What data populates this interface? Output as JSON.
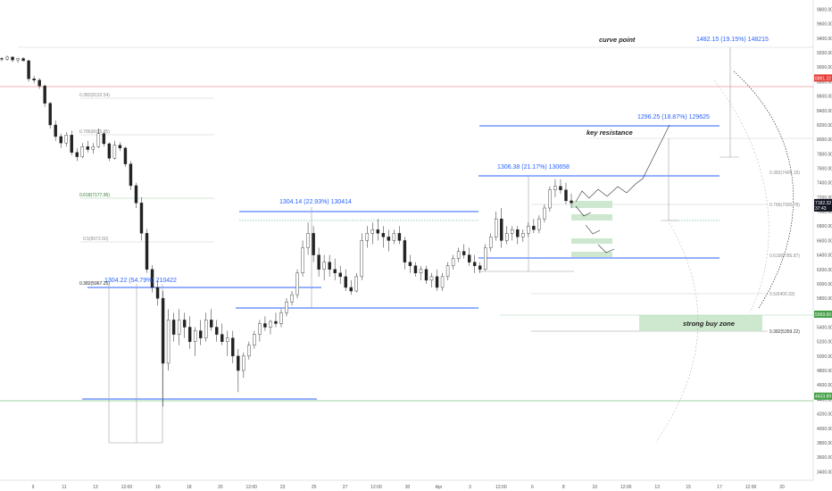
{
  "chart_data": {
    "type": "candlestick",
    "y_axis": {
      "ticks": [
        "9800.00",
        "9600.00",
        "9400.00",
        "9200.00",
        "9000.00",
        "8800.00",
        "8600.00",
        "8400.00",
        "8200.00",
        "8000.00",
        "7800.00",
        "7600.00",
        "7400.00",
        "7200.00",
        "7000.00",
        "6800.00",
        "6600.00",
        "6400.00",
        "6200.00",
        "6000.00",
        "5800.00",
        "5600.00",
        "5400.00",
        "5200.00",
        "5000.00",
        "4800.00",
        "4600.00",
        "4400.00",
        "4200.00",
        "4000.00",
        "3800.00",
        "3600.00",
        "3400.00"
      ],
      "tick_values": [
        9800,
        9600,
        9400,
        9200,
        9000,
        8800,
        8600,
        8400,
        8200,
        8000,
        7800,
        7600,
        7400,
        7200,
        7000,
        6800,
        6600,
        6400,
        6200,
        6000,
        5800,
        5600,
        5400,
        5200,
        5000,
        4800,
        4600,
        4400,
        4200,
        4000,
        3800,
        3600,
        3400
      ],
      "ylim": [
        3280,
        9930
      ]
    },
    "x_axis": {
      "ticks": [
        "9",
        "11",
        "13",
        "12:00",
        "16",
        "18",
        "20",
        "12:00",
        "23",
        "25",
        "27",
        "12:00",
        "30",
        "Apr",
        "3",
        "12:00",
        "6",
        "8",
        "10",
        "12:00",
        "13",
        "15",
        "17",
        "12:00",
        "20"
      ]
    },
    "price_badges": [
      {
        "label": "8881.22",
        "value": 8850,
        "color": "#e53935"
      },
      {
        "label": "7182.32",
        "value": 7125,
        "color": "#131722"
      },
      {
        "label": "37:43",
        "value": 7050,
        "color": "#131722"
      },
      {
        "label": "5569.60",
        "value": 5580,
        "color": "#43a047"
      },
      {
        "label": "4433.89",
        "value": 4445,
        "color": "#43a047"
      }
    ],
    "candles": [
      [
        9120,
        9140,
        9080,
        9110
      ],
      [
        9110,
        9160,
        9090,
        9140
      ],
      [
        9140,
        9150,
        9070,
        9100
      ],
      [
        9100,
        9130,
        9060,
        9120
      ],
      [
        9120,
        9140,
        9080,
        9090
      ],
      [
        9090,
        9100,
        8800,
        8840
      ],
      [
        8840,
        8880,
        8780,
        8820
      ],
      [
        8820,
        8850,
        8700,
        8740
      ],
      [
        8740,
        8760,
        8450,
        8500
      ],
      [
        8500,
        8520,
        8150,
        8200
      ],
      [
        8200,
        8260,
        7980,
        8040
      ],
      [
        8040,
        8080,
        7880,
        7950
      ],
      [
        7950,
        8100,
        7900,
        8060
      ],
      [
        8060,
        8120,
        7780,
        7820
      ],
      [
        7820,
        7880,
        7700,
        7760
      ],
      [
        7760,
        7950,
        7740,
        7900
      ],
      [
        7900,
        7980,
        7820,
        7860
      ],
      [
        7860,
        7950,
        7800,
        7900
      ],
      [
        7900,
        8150,
        7880,
        8080
      ],
      [
        8080,
        8100,
        7900,
        7940
      ],
      [
        7940,
        7960,
        7700,
        7740
      ],
      [
        7740,
        7980,
        7720,
        7920
      ],
      [
        7920,
        7960,
        7840,
        7880
      ],
      [
        7880,
        7900,
        7620,
        7660
      ],
      [
        7660,
        7700,
        7300,
        7360
      ],
      [
        7360,
        7400,
        7050,
        7120
      ],
      [
        7120,
        7200,
        6600,
        6700
      ],
      [
        6700,
        6760,
        6150,
        6200
      ],
      [
        6200,
        6260,
        5880,
        5950
      ],
      [
        5950,
        6050,
        5700,
        5800
      ],
      [
        5800,
        5900,
        4300,
        4900
      ],
      [
        4900,
        5650,
        4800,
        5500
      ],
      [
        5500,
        5600,
        5200,
        5300
      ],
      [
        5300,
        5650,
        5150,
        5500
      ],
      [
        5500,
        5600,
        5250,
        5400
      ],
      [
        5400,
        5550,
        5100,
        5200
      ],
      [
        5200,
        5400,
        5000,
        5350
      ],
      [
        5350,
        5500,
        5150,
        5250
      ],
      [
        5250,
        5600,
        5200,
        5500
      ],
      [
        5500,
        5650,
        5350,
        5400
      ],
      [
        5400,
        5500,
        5200,
        5300
      ],
      [
        5300,
        5450,
        5150,
        5200
      ],
      [
        5200,
        5350,
        5000,
        5250
      ],
      [
        5250,
        5350,
        4900,
        5000
      ],
      [
        5000,
        5100,
        4500,
        4800
      ],
      [
        4800,
        5050,
        4700,
        5000
      ],
      [
        5000,
        5200,
        4950,
        5150
      ],
      [
        5150,
        5350,
        5100,
        5300
      ],
      [
        5300,
        5500,
        5200,
        5450
      ],
      [
        5450,
        5550,
        5350,
        5400
      ],
      [
        5400,
        5500,
        5300,
        5480
      ],
      [
        5480,
        5600,
        5400,
        5450
      ],
      [
        5450,
        5650,
        5400,
        5600
      ],
      [
        5600,
        5800,
        5550,
        5750
      ],
      [
        5750,
        5900,
        5700,
        5850
      ],
      [
        5850,
        6200,
        5800,
        6150
      ],
      [
        6150,
        6600,
        6100,
        6500
      ],
      [
        6500,
        6850,
        6400,
        6700
      ],
      [
        6700,
        6800,
        6300,
        6400
      ],
      [
        6400,
        6500,
        6100,
        6200
      ],
      [
        6200,
        6400,
        6050,
        6300
      ],
      [
        6300,
        6400,
        6100,
        6200
      ],
      [
        6200,
        6350,
        6050,
        6150
      ],
      [
        6150,
        6250,
        6000,
        6100
      ],
      [
        6100,
        6200,
        5900,
        5950
      ],
      [
        5950,
        6050,
        5850,
        5900
      ],
      [
        5900,
        6150,
        5880,
        6100
      ],
      [
        6100,
        6700,
        6050,
        6600
      ],
      [
        6600,
        6800,
        6500,
        6700
      ],
      [
        6700,
        6850,
        6550,
        6750
      ],
      [
        6750,
        6900,
        6600,
        6700
      ],
      [
        6700,
        6800,
        6500,
        6650
      ],
      [
        6650,
        6750,
        6450,
        6600
      ],
      [
        6600,
        6750,
        6550,
        6700
      ],
      [
        6700,
        6800,
        6550,
        6600
      ],
      [
        6600,
        6650,
        6200,
        6300
      ],
      [
        6300,
        6400,
        6150,
        6250
      ],
      [
        6250,
        6300,
        6100,
        6150
      ],
      [
        6150,
        6250,
        6050,
        6200
      ],
      [
        6200,
        6250,
        6000,
        6050
      ],
      [
        6050,
        6150,
        5950,
        6100
      ],
      [
        6100,
        6200,
        5900,
        5950
      ],
      [
        5950,
        6150,
        5900,
        6100
      ],
      [
        6100,
        6300,
        6050,
        6250
      ],
      [
        6250,
        6400,
        6200,
        6350
      ],
      [
        6350,
        6500,
        6300,
        6450
      ],
      [
        6450,
        6550,
        6350,
        6400
      ],
      [
        6400,
        6500,
        6250,
        6300
      ],
      [
        6300,
        6400,
        6150,
        6250
      ],
      [
        6250,
        6300,
        6150,
        6200
      ],
      [
        6200,
        6550,
        6180,
        6500
      ],
      [
        6500,
        6700,
        6450,
        6650
      ],
      [
        6650,
        7000,
        6600,
        6900
      ],
      [
        6900,
        7050,
        6500,
        6600
      ],
      [
        6600,
        6800,
        6550,
        6700
      ],
      [
        6700,
        6800,
        6600,
        6750
      ],
      [
        6750,
        6800,
        6550,
        6650
      ],
      [
        6650,
        6750,
        6580,
        6700
      ],
      [
        6700,
        6850,
        6650,
        6800
      ],
      [
        6800,
        6900,
        6700,
        6750
      ],
      [
        6750,
        6950,
        6700,
        6900
      ],
      [
        6900,
        7100,
        6850,
        7050
      ],
      [
        7050,
        7350,
        7000,
        7300
      ],
      [
        7300,
        7450,
        7200,
        7350
      ],
      [
        7350,
        7450,
        7250,
        7300
      ],
      [
        7300,
        7400,
        7100,
        7150
      ],
      [
        7150,
        7250,
        7050,
        7120
      ]
    ]
  },
  "annotations": {
    "fib_labels": [
      "0.382(9132.54)",
      "0.786(8025.85)",
      "0.618(7177.96)",
      "0.5(6572.60)",
      "0.382(5967.25)",
      "0.382(7495.19)",
      "0.786(7000.78)",
      "0.618(6785.87)",
      "0.5(6400.33)",
      "0.382(5359.22)"
    ],
    "measurements": [
      "1304.22 (54.79%) 210422",
      "1304.14 (22.93%) 130414",
      "1306.38 (21.17%) 130658",
      "1296.25 (18.87%) 129625",
      "1482.15 (19.15%) 148215"
    ],
    "notes": [
      "curve point",
      "key resistance",
      "strong buy zone"
    ]
  }
}
